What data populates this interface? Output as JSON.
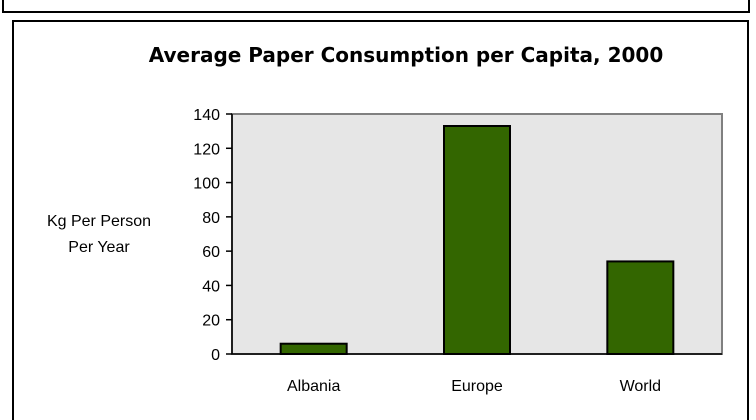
{
  "chart_data": {
    "type": "bar",
    "title": "Average Paper Consumption per Capita, 2000",
    "ylabel": [
      "Kg Per Person",
      "Per Year"
    ],
    "xlabel": "",
    "categories": [
      "Albania",
      "Europe",
      "World"
    ],
    "values": [
      6,
      133,
      54
    ],
    "ylim": [
      0,
      140
    ],
    "yticks": [
      0,
      20,
      40,
      60,
      80,
      100,
      120,
      140
    ],
    "grid": false,
    "legend": "none"
  },
  "colors": {
    "bar_fill": "#336600",
    "plot_background": "#e6e6e6",
    "plot_border": "#808080"
  }
}
